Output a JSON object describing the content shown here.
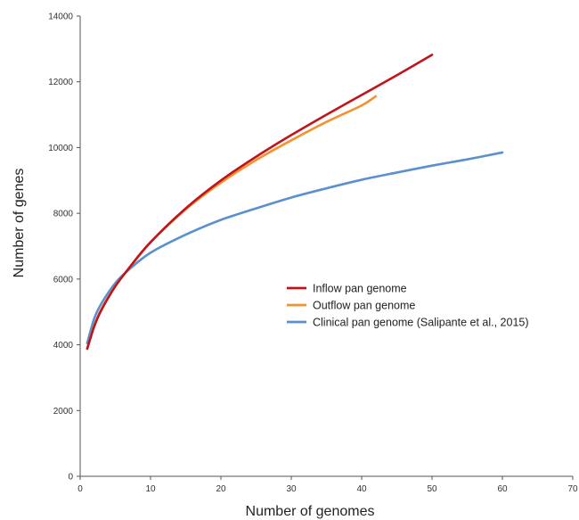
{
  "chart_data": {
    "type": "line",
    "title": "",
    "xlabel": "Number of genomes",
    "ylabel": "Number of genes",
    "xlim": [
      0,
      70
    ],
    "ylim": [
      0,
      14000
    ],
    "xticks": [
      0,
      10,
      20,
      30,
      40,
      50,
      60,
      70
    ],
    "yticks": [
      0,
      2000,
      4000,
      6000,
      8000,
      10000,
      12000,
      14000
    ],
    "grid": false,
    "legend_position": "center-right",
    "series": [
      {
        "name": "Inflow pan genome",
        "color": "#c0141c",
        "x": [
          1,
          2,
          3,
          5,
          7,
          10,
          15,
          20,
          25,
          30,
          35,
          40,
          45,
          50
        ],
        "y": [
          3880,
          4560,
          5050,
          5780,
          6350,
          7120,
          8150,
          9000,
          9720,
          10380,
          11000,
          11600,
          12200,
          12820
        ]
      },
      {
        "name": "Outflow pan genome",
        "color": "#f4922e",
        "x": [
          1,
          2,
          3,
          5,
          7,
          10,
          15,
          20,
          25,
          30,
          35,
          40,
          42
        ],
        "y": [
          3880,
          4580,
          5080,
          5790,
          6350,
          7120,
          8120,
          8930,
          9620,
          10220,
          10780,
          11280,
          11560
        ]
      },
      {
        "name": "Clinical pan genome (Salipante et al., 2015)",
        "color": "#5a90cf",
        "x": [
          1,
          2,
          3,
          5,
          7,
          10,
          15,
          20,
          25,
          30,
          35,
          40,
          45,
          50,
          55,
          60
        ],
        "y": [
          4050,
          4800,
          5250,
          5880,
          6300,
          6800,
          7350,
          7800,
          8150,
          8480,
          8760,
          9020,
          9240,
          9450,
          9640,
          9850
        ]
      }
    ]
  }
}
